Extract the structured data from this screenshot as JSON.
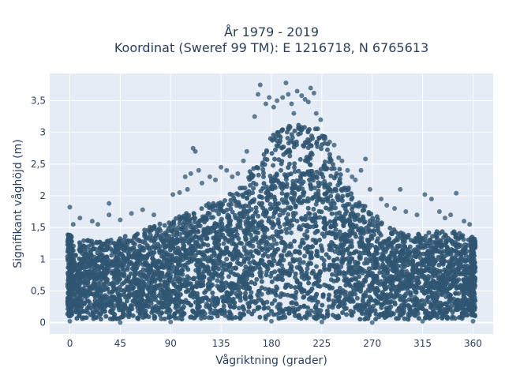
{
  "chart_data": {
    "type": "scatter",
    "title_lines": [
      "År 1979 - 2019",
      "Koordinat (Sweref 99 TM): E 1216718, N 6765613"
    ],
    "xlabel": "Vågriktning (grader)",
    "ylabel": "Signifikant våghöjd (m)",
    "xlim": [
      -18,
      378
    ],
    "ylim": [
      -0.18,
      3.93
    ],
    "x_ticks": [
      0,
      45,
      90,
      135,
      180,
      225,
      270,
      315,
      360
    ],
    "x_tick_labels": [
      "0",
      "45",
      "90",
      "135",
      "180",
      "225",
      "270",
      "315",
      "360"
    ],
    "y_ticks": [
      0,
      0.5,
      1,
      1.5,
      2,
      2.5,
      3,
      3.5
    ],
    "y_tick_labels": [
      "0",
      "0,5",
      "1",
      "1,5",
      "2",
      "2,5",
      "3",
      "3,5"
    ],
    "grid": true,
    "legend": "none",
    "marker_color": "#2f5571",
    "background_color": "#e5ecf6",
    "envelope": {
      "x": [
        0,
        15,
        30,
        45,
        60,
        75,
        90,
        105,
        120,
        135,
        150,
        165,
        180,
        195,
        210,
        225,
        240,
        255,
        270,
        285,
        300,
        315,
        330,
        345,
        360
      ],
      "y_max": [
        1.25,
        1.3,
        1.3,
        1.35,
        1.4,
        1.55,
        1.6,
        1.75,
        1.85,
        1.95,
        2.1,
        2.5,
        2.95,
        3.1,
        3.15,
        3.05,
        2.45,
        1.95,
        1.75,
        1.5,
        1.4,
        1.4,
        1.45,
        1.45,
        1.3
      ],
      "y_min": [
        0.15,
        0.05,
        0.05,
        0.05,
        0.05,
        0.05,
        0.05,
        0.05,
        0.05,
        0.05,
        0.05,
        0.05,
        0.05,
        0.05,
        0.05,
        0.05,
        0.05,
        0.05,
        0.05,
        0.05,
        0.05,
        0.05,
        0.05,
        0.05,
        0.15
      ]
    },
    "sample_points": [
      [
        0,
        1.82
      ],
      [
        3,
        1.55
      ],
      [
        9,
        1.65
      ],
      [
        20,
        1.6
      ],
      [
        25,
        1.55
      ],
      [
        35,
        1.88
      ],
      [
        35,
        1.7
      ],
      [
        45,
        1.62
      ],
      [
        55,
        1.72
      ],
      [
        65,
        1.78
      ],
      [
        75,
        1.7
      ],
      [
        92,
        2.02
      ],
      [
        98,
        2.05
      ],
      [
        103,
        2.3
      ],
      [
        105,
        2.1
      ],
      [
        108,
        2.35
      ],
      [
        110,
        2.75
      ],
      [
        112,
        2.7
      ],
      [
        115,
        2.4
      ],
      [
        118,
        2.2
      ],
      [
        125,
        2.3
      ],
      [
        130,
        2.25
      ],
      [
        135,
        2.45
      ],
      [
        140,
        2.4
      ],
      [
        145,
        2.3
      ],
      [
        150,
        2.35
      ],
      [
        155,
        2.55
      ],
      [
        158,
        2.7
      ],
      [
        165,
        3.25
      ],
      [
        168,
        3.6
      ],
      [
        170,
        3.75
      ],
      [
        175,
        3.45
      ],
      [
        178,
        3.55
      ],
      [
        182,
        3.4
      ],
      [
        185,
        3.5
      ],
      [
        190,
        3.55
      ],
      [
        193,
        3.78
      ],
      [
        195,
        3.6
      ],
      [
        198,
        3.45
      ],
      [
        200,
        3.3
      ],
      [
        203,
        3.65
      ],
      [
        207,
        3.58
      ],
      [
        210,
        3.52
      ],
      [
        213,
        3.48
      ],
      [
        215,
        3.7
      ],
      [
        218,
        3.62
      ],
      [
        220,
        3.3
      ],
      [
        224,
        3.2
      ],
      [
        228,
        2.9
      ],
      [
        232,
        2.85
      ],
      [
        236,
        2.8
      ],
      [
        240,
        2.6
      ],
      [
        243,
        2.55
      ],
      [
        248,
        2.4
      ],
      [
        252,
        2.3
      ],
      [
        255,
        2.25
      ],
      [
        260,
        2.4
      ],
      [
        264,
        2.58
      ],
      [
        268,
        2.1
      ],
      [
        278,
        1.95
      ],
      [
        283,
        1.85
      ],
      [
        290,
        1.8
      ],
      [
        295,
        2.1
      ],
      [
        300,
        1.75
      ],
      [
        310,
        1.7
      ],
      [
        317,
        2.02
      ],
      [
        323,
        1.95
      ],
      [
        330,
        1.75
      ],
      [
        335,
        1.65
      ],
      [
        340,
        1.7
      ],
      [
        345,
        2.04
      ],
      [
        352,
        1.6
      ],
      [
        357,
        1.55
      ],
      [
        0,
        0.02
      ],
      [
        45,
        0.0
      ],
      [
        90,
        0.01
      ],
      [
        180,
        0.02
      ],
      [
        225,
        0.01
      ],
      [
        270,
        0.0
      ],
      [
        315,
        0.02
      ],
      [
        360,
        0.02
      ]
    ]
  }
}
